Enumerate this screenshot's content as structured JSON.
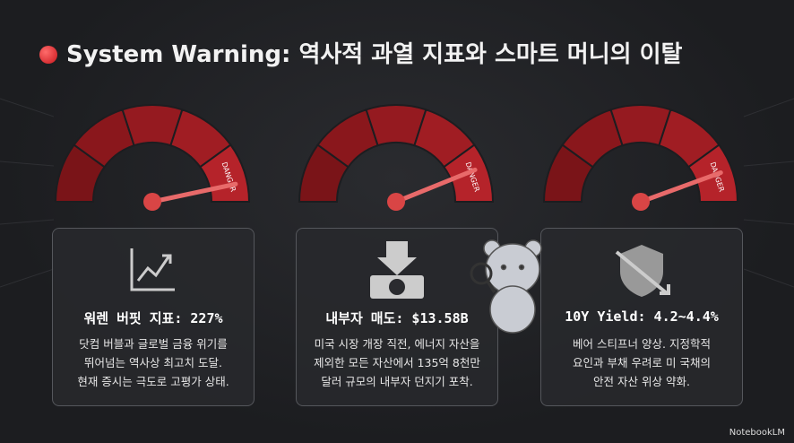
{
  "header": {
    "title": "System Warning: 역사적 과열 지표와 스마트 머니의 이탈"
  },
  "cards": [
    {
      "gauge_label": "DANGER",
      "metric": "워렌 버핏 지표: 227%",
      "lines": [
        "닷컴 버블과 글로벌 금융 위기를",
        "뛰어넘는 역사상 최고치 도달.",
        "현재 증시는 극도로 고평가 상태."
      ]
    },
    {
      "gauge_label": "DANGER",
      "metric": "내부자 매도: $13.58B",
      "lines": [
        "미국 시장 개장 직전, 에너지 자산을",
        "제외한 모든 자산에서 135억 8천만",
        "달러 규모의 내부자 던지기 포착."
      ]
    },
    {
      "gauge_label": "DANGER",
      "metric": "10Y Yield: 4.2~4.4%",
      "lines": [
        "베어 스티프너 양상. 지정학적",
        "요인과 부채 우려로 미 국채의",
        "안전 자산 위상 약화."
      ]
    }
  ],
  "footer": {
    "watermark": "NotebookLM"
  }
}
